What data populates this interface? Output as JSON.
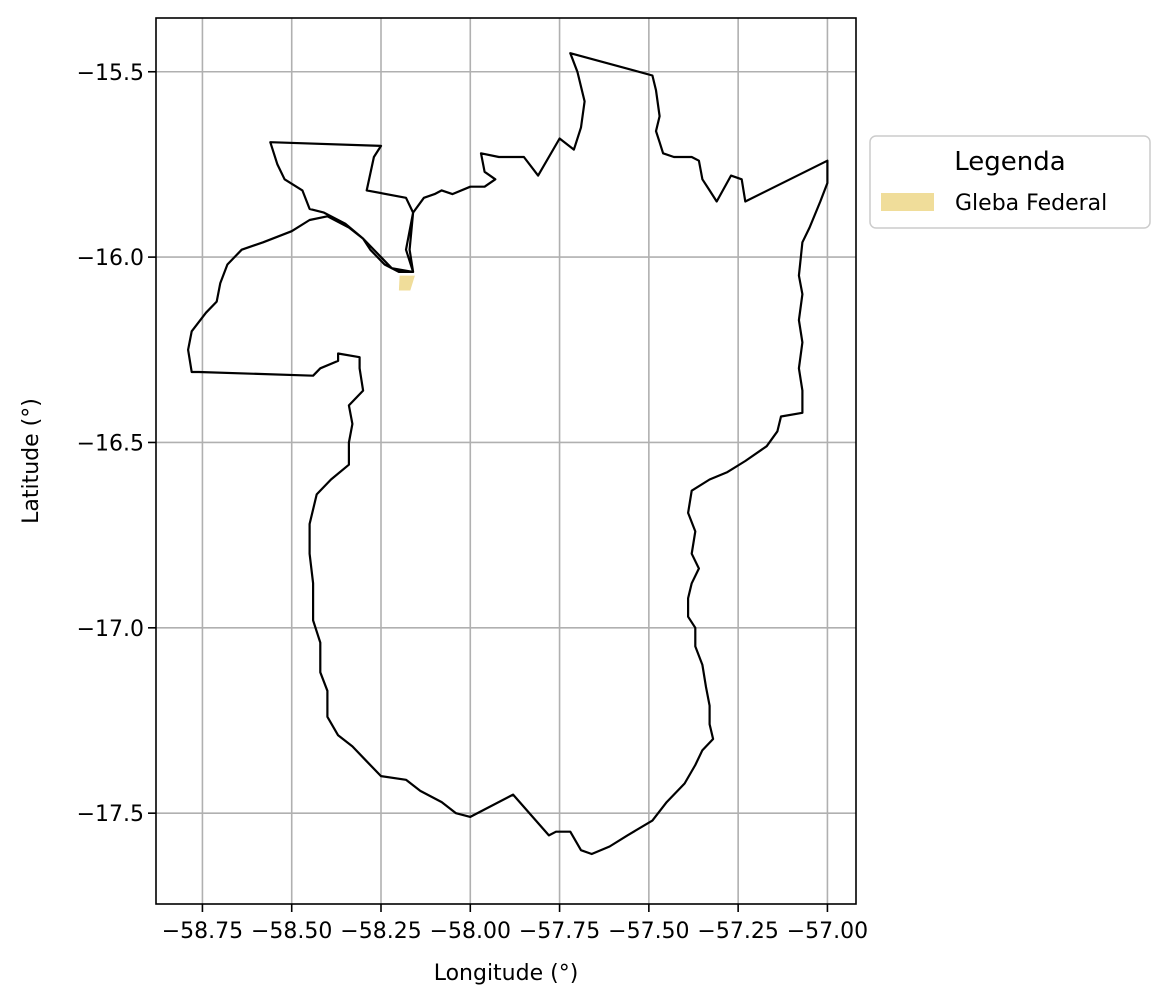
{
  "chart_data": {
    "type": "map",
    "xlabel": "Longitude (°)",
    "ylabel": "Latitude (°)",
    "xlim": [
      -58.88,
      -56.92
    ],
    "ylim": [
      -17.745,
      -15.355
    ],
    "xticks": [
      -58.75,
      -58.5,
      -58.25,
      -58.0,
      -57.75,
      -57.5,
      -57.25,
      -57.0
    ],
    "xtick_labels": [
      "−58.75",
      "−58.50",
      "−58.25",
      "−58.00",
      "−57.75",
      "−57.50",
      "−57.25",
      "−57.00"
    ],
    "yticks": [
      -15.5,
      -16.0,
      -16.5,
      -17.0,
      -17.5
    ],
    "ytick_labels": [
      "−15.5",
      "−16.0",
      "−16.5",
      "−17.0",
      "−17.5"
    ],
    "grid": true,
    "legend": {
      "title": "Legenda",
      "placement": "outside-right-top",
      "entries": [
        {
          "label": "Gleba Federal",
          "color": "#f0dd9a"
        }
      ]
    },
    "boundary": {
      "stroke": "#000000",
      "coordinates": [
        [
          -57.72,
          -15.45
        ],
        [
          -57.49,
          -15.51
        ],
        [
          -57.48,
          -15.55
        ],
        [
          -57.47,
          -15.62
        ],
        [
          -57.48,
          -15.66
        ],
        [
          -57.47,
          -15.69
        ],
        [
          -57.46,
          -15.72
        ],
        [
          -57.43,
          -15.73
        ],
        [
          -57.38,
          -15.73
        ],
        [
          -57.36,
          -15.74
        ],
        [
          -57.35,
          -15.79
        ],
        [
          -57.33,
          -15.82
        ],
        [
          -57.31,
          -15.85
        ],
        [
          -57.27,
          -15.78
        ],
        [
          -57.24,
          -15.79
        ],
        [
          -57.23,
          -15.85
        ],
        [
          -57.0,
          -15.74
        ],
        [
          -57.0,
          -15.8
        ],
        [
          -57.02,
          -15.85
        ],
        [
          -57.05,
          -15.92
        ],
        [
          -57.07,
          -15.96
        ],
        [
          -57.08,
          -16.05
        ],
        [
          -57.07,
          -16.1
        ],
        [
          -57.08,
          -16.17
        ],
        [
          -57.07,
          -16.23
        ],
        [
          -57.08,
          -16.3
        ],
        [
          -57.07,
          -16.36
        ],
        [
          -57.07,
          -16.42
        ],
        [
          -57.13,
          -16.43
        ],
        [
          -57.14,
          -16.47
        ],
        [
          -57.17,
          -16.51
        ],
        [
          -57.23,
          -16.55
        ],
        [
          -57.28,
          -16.58
        ],
        [
          -57.33,
          -16.6
        ],
        [
          -57.38,
          -16.63
        ],
        [
          -57.39,
          -16.69
        ],
        [
          -57.37,
          -16.74
        ],
        [
          -57.38,
          -16.8
        ],
        [
          -57.36,
          -16.84
        ],
        [
          -57.38,
          -16.88
        ],
        [
          -57.39,
          -16.92
        ],
        [
          -57.39,
          -16.97
        ],
        [
          -57.37,
          -17.0
        ],
        [
          -57.37,
          -17.05
        ],
        [
          -57.35,
          -17.1
        ],
        [
          -57.34,
          -17.16
        ],
        [
          -57.33,
          -17.21
        ],
        [
          -57.33,
          -17.26
        ],
        [
          -57.32,
          -17.3
        ],
        [
          -57.35,
          -17.33
        ],
        [
          -57.37,
          -17.37
        ],
        [
          -57.4,
          -17.42
        ],
        [
          -57.45,
          -17.47
        ],
        [
          -57.49,
          -17.52
        ],
        [
          -57.56,
          -17.56
        ],
        [
          -57.61,
          -17.59
        ],
        [
          -57.66,
          -17.61
        ],
        [
          -57.69,
          -17.6
        ],
        [
          -57.72,
          -17.55
        ],
        [
          -57.76,
          -17.55
        ],
        [
          -57.78,
          -17.56
        ],
        [
          -57.88,
          -17.45
        ],
        [
          -58.0,
          -17.51
        ],
        [
          -58.04,
          -17.5
        ],
        [
          -58.08,
          -17.47
        ],
        [
          -58.14,
          -17.44
        ],
        [
          -58.18,
          -17.41
        ],
        [
          -58.25,
          -17.4
        ],
        [
          -58.29,
          -17.36
        ],
        [
          -58.33,
          -17.32
        ],
        [
          -58.37,
          -17.29
        ],
        [
          -58.4,
          -17.24
        ],
        [
          -58.4,
          -17.17
        ],
        [
          -58.42,
          -17.12
        ],
        [
          -58.42,
          -17.04
        ],
        [
          -58.44,
          -16.98
        ],
        [
          -58.44,
          -16.88
        ],
        [
          -58.45,
          -16.8
        ],
        [
          -58.45,
          -16.72
        ],
        [
          -58.43,
          -16.64
        ],
        [
          -58.39,
          -16.6
        ],
        [
          -58.34,
          -16.56
        ],
        [
          -58.34,
          -16.5
        ],
        [
          -58.33,
          -16.45
        ],
        [
          -58.34,
          -16.4
        ],
        [
          -58.3,
          -16.36
        ],
        [
          -58.31,
          -16.3
        ],
        [
          -58.31,
          -16.27
        ],
        [
          -58.37,
          -16.26
        ],
        [
          -58.37,
          -16.28
        ],
        [
          -58.42,
          -16.3
        ],
        [
          -58.44,
          -16.32
        ],
        [
          -58.76,
          -16.31
        ],
        [
          -58.78,
          -16.31
        ],
        [
          -58.79,
          -16.25
        ],
        [
          -58.78,
          -16.2
        ],
        [
          -58.74,
          -16.15
        ],
        [
          -58.71,
          -16.12
        ],
        [
          -58.7,
          -16.07
        ],
        [
          -58.68,
          -16.02
        ],
        [
          -58.64,
          -15.98
        ],
        [
          -58.58,
          -15.96
        ],
        [
          -58.5,
          -15.93
        ],
        [
          -58.45,
          -15.9
        ],
        [
          -58.4,
          -15.89
        ],
        [
          -58.34,
          -15.92
        ],
        [
          -58.3,
          -15.95
        ],
        [
          -58.28,
          -15.98
        ],
        [
          -58.24,
          -16.02
        ],
        [
          -58.2,
          -16.04
        ],
        [
          -58.16,
          -16.04
        ],
        [
          -58.18,
          -15.98
        ],
        [
          -58.16,
          -15.88
        ],
        [
          -58.18,
          -15.84
        ],
        [
          -58.29,
          -15.82
        ],
        [
          -58.27,
          -15.73
        ],
        [
          -58.25,
          -15.7
        ],
        [
          -58.56,
          -15.69
        ],
        [
          -58.54,
          -15.75
        ],
        [
          -58.52,
          -15.79
        ],
        [
          -58.47,
          -15.82
        ],
        [
          -58.45,
          -15.87
        ],
        [
          -58.41,
          -15.88
        ],
        [
          -58.35,
          -15.91
        ],
        [
          -58.3,
          -15.95
        ],
        [
          -58.26,
          -15.99
        ],
        [
          -58.22,
          -16.03
        ],
        [
          -58.16,
          -16.04
        ],
        [
          -58.17,
          -15.98
        ],
        [
          -58.16,
          -15.88
        ],
        [
          -58.13,
          -15.84
        ],
        [
          -58.1,
          -15.83
        ],
        [
          -58.08,
          -15.82
        ],
        [
          -58.05,
          -15.83
        ],
        [
          -58.0,
          -15.81
        ],
        [
          -57.96,
          -15.81
        ],
        [
          -57.93,
          -15.79
        ],
        [
          -57.96,
          -15.77
        ],
        [
          -57.97,
          -15.72
        ],
        [
          -57.92,
          -15.73
        ],
        [
          -57.85,
          -15.73
        ],
        [
          -57.81,
          -15.78
        ],
        [
          -57.75,
          -15.68
        ],
        [
          -57.71,
          -15.71
        ],
        [
          -57.69,
          -15.65
        ],
        [
          -57.68,
          -15.58
        ],
        [
          -57.7,
          -15.5
        ],
        [
          -57.72,
          -15.45
        ]
      ]
    },
    "feature": {
      "name": "Gleba Federal",
      "color": "#f0dd9a",
      "coordinates": [
        [
          -58.198,
          -16.05
        ],
        [
          -58.155,
          -16.05
        ],
        [
          -58.168,
          -16.09
        ],
        [
          -58.2,
          -16.09
        ]
      ]
    }
  }
}
